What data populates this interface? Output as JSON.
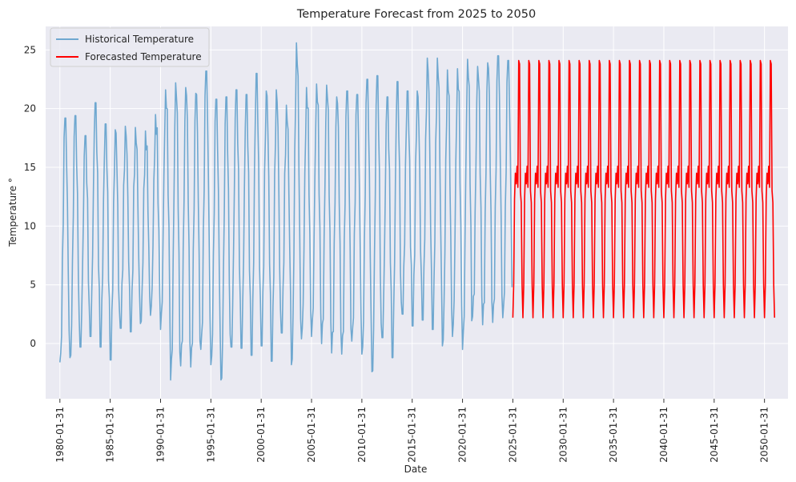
{
  "chart_data": {
    "type": "line",
    "title": "Temperature Forecast from 2025 to 2050",
    "xlabel": "Date",
    "ylabel": "Temperature °",
    "xlim": [
      "1978-09-01",
      "2052-06-01"
    ],
    "ylim": [
      -4.7,
      27.0
    ],
    "grid": true,
    "legend_position": "top-left",
    "x_ticks": [
      "1980-01-31",
      "1985-01-31",
      "1990-01-31",
      "1995-01-31",
      "2000-01-31",
      "2005-01-31",
      "2010-01-31",
      "2015-01-31",
      "2020-01-31",
      "2025-01-31",
      "2030-01-31",
      "2035-01-31",
      "2040-01-31",
      "2045-01-31",
      "2050-01-31"
    ],
    "y_ticks": [
      0,
      5,
      10,
      15,
      20,
      25
    ],
    "series": [
      {
        "name": "Historical Temperature",
        "color": "#6fa8d0",
        "x_start": "1980-01-31",
        "x_end": "2025-01-31",
        "frequency": "monthly",
        "summary": {
          "min": -3.1,
          "max": 25.6
        },
        "annual_peaks": [
          {
            "year": 1980,
            "max": 19.2,
            "min": -1.6
          },
          {
            "year": 1981,
            "max": 19.4,
            "min": -1.2
          },
          {
            "year": 1982,
            "max": 17.7,
            "min": -0.3
          },
          {
            "year": 1983,
            "max": 20.5,
            "min": 0.6
          },
          {
            "year": 1984,
            "max": 18.7,
            "min": -0.3
          },
          {
            "year": 1985,
            "max": 18.2,
            "min": -1.4
          },
          {
            "year": 1986,
            "max": 18.5,
            "min": 1.3
          },
          {
            "year": 1987,
            "max": 18.4,
            "min": 1.0
          },
          {
            "year": 1988,
            "max": 18.1,
            "min": 1.7
          },
          {
            "year": 1989,
            "max": 19.5,
            "min": 2.4
          },
          {
            "year": 1990,
            "max": 21.6,
            "min": 1.2
          },
          {
            "year": 1991,
            "max": 22.2,
            "min": -3.1
          },
          {
            "year": 1992,
            "max": 21.8,
            "min": -1.9
          },
          {
            "year": 1993,
            "max": 21.3,
            "min": -2.0
          },
          {
            "year": 1994,
            "max": 23.2,
            "min": -0.5
          },
          {
            "year": 1995,
            "max": 20.8,
            "min": -1.8
          },
          {
            "year": 1996,
            "max": 21.0,
            "min": -3.1
          },
          {
            "year": 1997,
            "max": 21.6,
            "min": -0.3
          },
          {
            "year": 1998,
            "max": 21.2,
            "min": -0.4
          },
          {
            "year": 1999,
            "max": 23.0,
            "min": -1.0
          },
          {
            "year": 2000,
            "max": 21.5,
            "min": -0.2
          },
          {
            "year": 2001,
            "max": 21.6,
            "min": -1.5
          },
          {
            "year": 2002,
            "max": 20.3,
            "min": 0.9
          },
          {
            "year": 2003,
            "max": 25.6,
            "min": -1.8
          },
          {
            "year": 2004,
            "max": 21.8,
            "min": 0.4
          },
          {
            "year": 2005,
            "max": 22.1,
            "min": 0.6
          },
          {
            "year": 2006,
            "max": 22.0,
            "min": 0.0
          },
          {
            "year": 2007,
            "max": 21.0,
            "min": -0.8
          },
          {
            "year": 2008,
            "max": 21.5,
            "min": -0.9
          },
          {
            "year": 2009,
            "max": 21.2,
            "min": 0.2
          },
          {
            "year": 2010,
            "max": 22.5,
            "min": -0.9
          },
          {
            "year": 2011,
            "max": 22.8,
            "min": -2.4
          },
          {
            "year": 2012,
            "max": 21.0,
            "min": 0.5
          },
          {
            "year": 2013,
            "max": 22.3,
            "min": -1.2
          },
          {
            "year": 2014,
            "max": 21.5,
            "min": 2.5
          },
          {
            "year": 2015,
            "max": 21.5,
            "min": 1.5
          },
          {
            "year": 2016,
            "max": 24.3,
            "min": 2.0
          },
          {
            "year": 2017,
            "max": 24.3,
            "min": 1.2
          },
          {
            "year": 2018,
            "max": 23.3,
            "min": -0.2
          },
          {
            "year": 2019,
            "max": 23.4,
            "min": 0.6
          },
          {
            "year": 2020,
            "max": 24.2,
            "min": -0.5
          },
          {
            "year": 2021,
            "max": 23.6,
            "min": 2.3
          },
          {
            "year": 2022,
            "max": 23.9,
            "min": 1.6
          },
          {
            "year": 2023,
            "max": 24.5,
            "min": 1.8
          },
          {
            "year": 2024,
            "max": 24.1,
            "min": 2.2
          }
        ]
      },
      {
        "name": "Forecasted Temperature",
        "color": "#ff0000",
        "x_start": "2025-01-31",
        "x_end": "2051-01-31",
        "frequency": "monthly",
        "annual_cycle": [
          {
            "month": "Jan",
            "value": 2.2
          },
          {
            "month": "Feb",
            "value": 5.0
          },
          {
            "month": "Mar",
            "value": 12.3
          },
          {
            "month": "Apr",
            "value": 14.5
          },
          {
            "month": "May",
            "value": 13.6
          },
          {
            "month": "Jun",
            "value": 15.1
          },
          {
            "month": "Jul",
            "value": 13.3
          },
          {
            "month": "Aug",
            "value": 24.1
          },
          {
            "month": "Sep",
            "value": 23.8
          },
          {
            "month": "Oct",
            "value": 13.0
          },
          {
            "month": "Nov",
            "value": 12.0
          },
          {
            "month": "Dec",
            "value": 5.0
          }
        ]
      }
    ]
  }
}
